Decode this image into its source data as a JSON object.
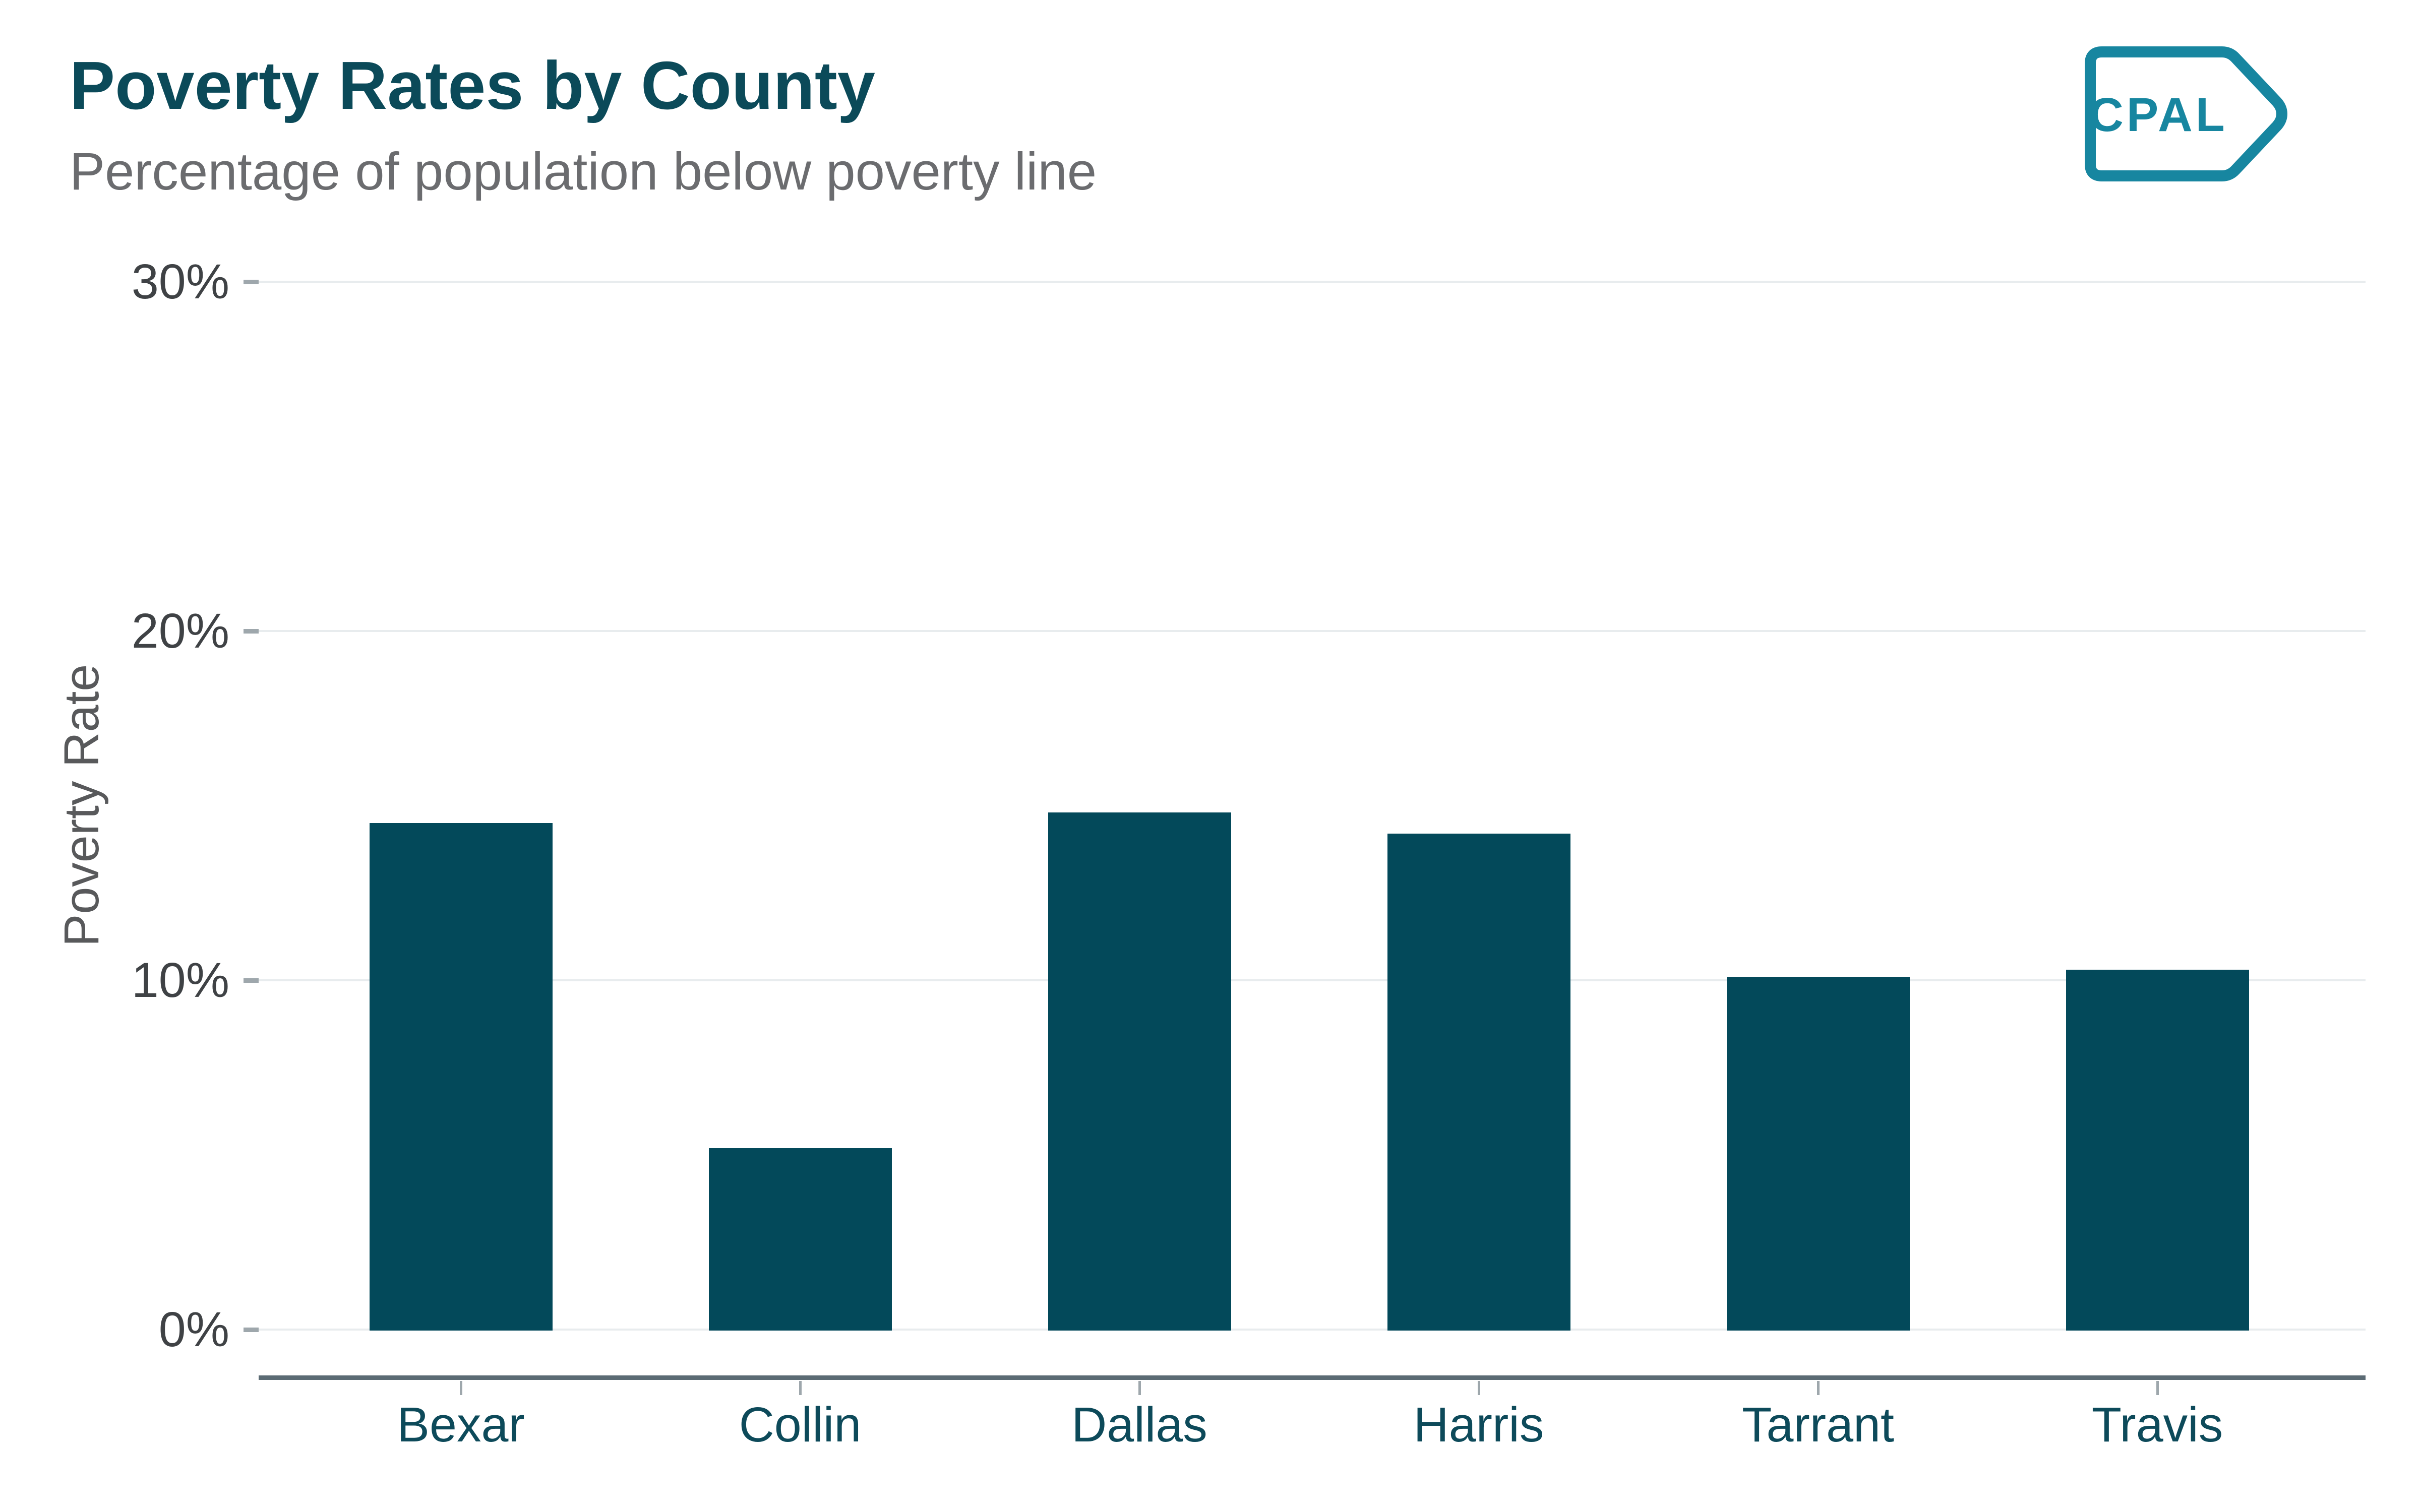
{
  "header": {
    "title": "Poverty Rates by County",
    "subtitle": "Percentage of population below poverty line"
  },
  "logo": {
    "text": "CPAL"
  },
  "chart_data": {
    "type": "bar",
    "title": "Poverty Rates by County",
    "subtitle": "Percentage of population below poverty line",
    "categories": [
      "Bexar",
      "Collin",
      "Dallas",
      "Harris",
      "Tarrant",
      "Travis"
    ],
    "values": [
      14.5,
      5.2,
      14.8,
      14.2,
      10.1,
      10.3
    ],
    "xlabel": "",
    "ylabel": "Poverty Rate",
    "ylim": [
      0,
      30
    ],
    "yticks": [
      0,
      10,
      20,
      30
    ],
    "ytick_labels": [
      "0%",
      "10%",
      "20%",
      "30%"
    ],
    "grid": true,
    "legend": false,
    "colors": {
      "bar": "#03495A",
      "title": "#0B4A59",
      "subtitle": "#6B6C6F",
      "gridline": "#E8ECEE",
      "axis_line": "#5B6B74",
      "tick_mark": "#9EA7AC",
      "ytick_label": "#3F4245",
      "xtick_label": "#0D4A5A",
      "axis_title": "#58595B",
      "logo": "#1786A0"
    }
  }
}
